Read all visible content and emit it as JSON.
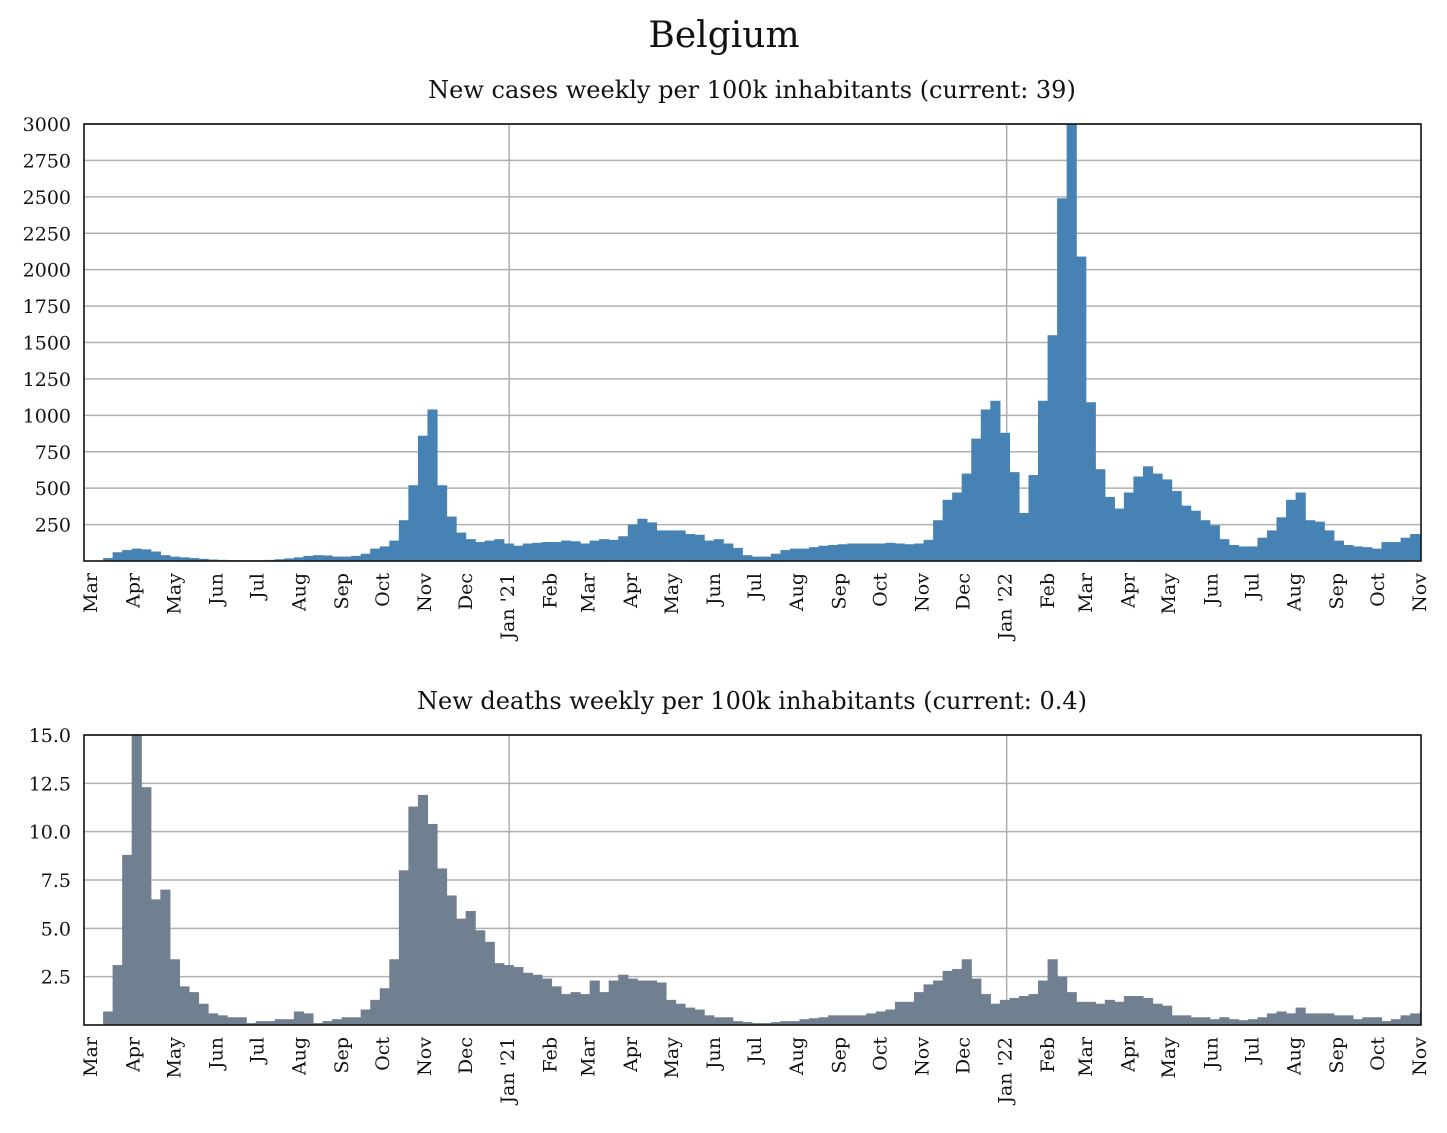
{
  "page_title": "Belgium",
  "chart_data": [
    {
      "type": "bar",
      "title": "New cases weekly per 100k inhabitants (current: 39)",
      "xlabel": "",
      "ylabel": "",
      "color": "#4682b4",
      "ylim": [
        0,
        3000
      ],
      "yticks": [
        "250",
        "500",
        "750",
        "1000",
        "1250",
        "1500",
        "1750",
        "2000",
        "2250",
        "2500",
        "2750",
        "3000"
      ],
      "ytick_values": [
        250,
        500,
        750,
        1000,
        1250,
        1500,
        1750,
        2000,
        2250,
        2500,
        2750,
        3000
      ],
      "grid": true,
      "x_start": "2020-02-24",
      "x_end": "2022-11-01",
      "bin_days": 7,
      "year_lines": [
        "2021-01-01",
        "2022-01-01"
      ],
      "xticks": [
        {
          "label": "Mar",
          "date": "2020-03-01"
        },
        {
          "label": "Apr",
          "date": "2020-04-01"
        },
        {
          "label": "May",
          "date": "2020-05-01"
        },
        {
          "label": "Jun",
          "date": "2020-06-01"
        },
        {
          "label": "Jul",
          "date": "2020-07-01"
        },
        {
          "label": "Aug",
          "date": "2020-08-01"
        },
        {
          "label": "Sep",
          "date": "2020-09-01"
        },
        {
          "label": "Oct",
          "date": "2020-10-01"
        },
        {
          "label": "Nov",
          "date": "2020-11-01"
        },
        {
          "label": "Dec",
          "date": "2020-12-01"
        },
        {
          "label": "Jan '21",
          "date": "2021-01-01"
        },
        {
          "label": "Feb",
          "date": "2021-02-01"
        },
        {
          "label": "Mar",
          "date": "2021-03-01"
        },
        {
          "label": "Apr",
          "date": "2021-04-01"
        },
        {
          "label": "May",
          "date": "2021-05-01"
        },
        {
          "label": "Jun",
          "date": "2021-06-01"
        },
        {
          "label": "Jul",
          "date": "2021-07-01"
        },
        {
          "label": "Aug",
          "date": "2021-08-01"
        },
        {
          "label": "Sep",
          "date": "2021-09-01"
        },
        {
          "label": "Oct",
          "date": "2021-10-01"
        },
        {
          "label": "Nov",
          "date": "2021-11-01"
        },
        {
          "label": "Dec",
          "date": "2021-12-01"
        },
        {
          "label": "Jan '22",
          "date": "2022-01-01"
        },
        {
          "label": "Feb",
          "date": "2022-02-01"
        },
        {
          "label": "Mar",
          "date": "2022-03-01"
        },
        {
          "label": "Apr",
          "date": "2022-04-01"
        },
        {
          "label": "May",
          "date": "2022-05-01"
        },
        {
          "label": "Jun",
          "date": "2022-06-01"
        },
        {
          "label": "Jul",
          "date": "2022-07-01"
        },
        {
          "label": "Aug",
          "date": "2022-08-01"
        },
        {
          "label": "Sep",
          "date": "2022-09-01"
        },
        {
          "label": "Oct",
          "date": "2022-10-01"
        },
        {
          "label": "Nov",
          "date": "2022-11-01"
        }
      ],
      "values": [
        0,
        0,
        20,
        60,
        75,
        85,
        80,
        65,
        40,
        30,
        25,
        20,
        15,
        10,
        8,
        6,
        5,
        5,
        5,
        8,
        12,
        18,
        25,
        35,
        40,
        38,
        30,
        30,
        35,
        50,
        85,
        100,
        140,
        280,
        520,
        860,
        1040,
        520,
        305,
        195,
        150,
        130,
        140,
        150,
        120,
        105,
        120,
        125,
        130,
        130,
        140,
        135,
        120,
        140,
        150,
        145,
        170,
        250,
        290,
        265,
        210,
        210,
        210,
        185,
        180,
        140,
        150,
        120,
        90,
        40,
        30,
        30,
        50,
        75,
        85,
        85,
        95,
        105,
        110,
        115,
        120,
        120,
        120,
        120,
        125,
        120,
        115,
        120,
        145,
        280,
        420,
        470,
        600,
        840,
        1040,
        1100,
        880,
        610,
        330,
        590,
        1100,
        1550,
        2490,
        3010,
        2090,
        1090,
        630,
        440,
        360,
        470,
        580,
        650,
        600,
        560,
        480,
        380,
        345,
        280,
        245,
        150,
        110,
        100,
        100,
        160,
        210,
        300,
        420,
        470,
        280,
        270,
        210,
        140,
        110,
        100,
        95,
        85,
        130,
        130,
        160,
        185,
        170,
        140,
        90,
        50,
        39
      ]
    },
    {
      "type": "bar",
      "title": "New deaths weekly per 100k inhabitants (current: 0.4)",
      "xlabel": "",
      "ylabel": "",
      "color": "#708090",
      "ylim": [
        0,
        15
      ],
      "yticks": [
        "2.5",
        "5.0",
        "7.5",
        "10.0",
        "12.5",
        "15.0"
      ],
      "ytick_values": [
        2.5,
        5,
        7.5,
        10,
        12.5,
        15
      ],
      "grid": true,
      "x_start": "2020-02-24",
      "x_end": "2022-11-01",
      "bin_days": 7,
      "year_lines": [
        "2021-01-01",
        "2022-01-01"
      ],
      "xticks": [
        {
          "label": "Mar",
          "date": "2020-03-01"
        },
        {
          "label": "Apr",
          "date": "2020-04-01"
        },
        {
          "label": "May",
          "date": "2020-05-01"
        },
        {
          "label": "Jun",
          "date": "2020-06-01"
        },
        {
          "label": "Jul",
          "date": "2020-07-01"
        },
        {
          "label": "Aug",
          "date": "2020-08-01"
        },
        {
          "label": "Sep",
          "date": "2020-09-01"
        },
        {
          "label": "Oct",
          "date": "2020-10-01"
        },
        {
          "label": "Nov",
          "date": "2020-11-01"
        },
        {
          "label": "Dec",
          "date": "2020-12-01"
        },
        {
          "label": "Jan '21",
          "date": "2021-01-01"
        },
        {
          "label": "Feb",
          "date": "2021-02-01"
        },
        {
          "label": "Mar",
          "date": "2021-03-01"
        },
        {
          "label": "Apr",
          "date": "2021-04-01"
        },
        {
          "label": "May",
          "date": "2021-05-01"
        },
        {
          "label": "Jun",
          "date": "2021-06-01"
        },
        {
          "label": "Jul",
          "date": "2021-07-01"
        },
        {
          "label": "Aug",
          "date": "2021-08-01"
        },
        {
          "label": "Sep",
          "date": "2021-09-01"
        },
        {
          "label": "Oct",
          "date": "2021-10-01"
        },
        {
          "label": "Nov",
          "date": "2021-11-01"
        },
        {
          "label": "Dec",
          "date": "2021-12-01"
        },
        {
          "label": "Jan '22",
          "date": "2022-01-01"
        },
        {
          "label": "Feb",
          "date": "2022-02-01"
        },
        {
          "label": "Mar",
          "date": "2022-03-01"
        },
        {
          "label": "Apr",
          "date": "2022-04-01"
        },
        {
          "label": "May",
          "date": "2022-05-01"
        },
        {
          "label": "Jun",
          "date": "2022-06-01"
        },
        {
          "label": "Jul",
          "date": "2022-07-01"
        },
        {
          "label": "Aug",
          "date": "2022-08-01"
        },
        {
          "label": "Sep",
          "date": "2022-09-01"
        },
        {
          "label": "Oct",
          "date": "2022-10-01"
        },
        {
          "label": "Nov",
          "date": "2022-11-01"
        }
      ],
      "values": [
        0,
        0,
        0.7,
        3.1,
        8.8,
        15.0,
        12.3,
        6.5,
        7.0,
        3.4,
        2.0,
        1.7,
        1.1,
        0.6,
        0.5,
        0.4,
        0.4,
        0.1,
        0.2,
        0.2,
        0.3,
        0.3,
        0.7,
        0.6,
        0.1,
        0.2,
        0.3,
        0.4,
        0.4,
        0.8,
        1.3,
        1.9,
        3.4,
        8.0,
        11.3,
        11.9,
        10.4,
        8.1,
        6.7,
        5.5,
        5.9,
        4.9,
        4.3,
        3.2,
        3.1,
        3.0,
        2.7,
        2.6,
        2.4,
        2.0,
        1.6,
        1.7,
        1.6,
        2.3,
        1.7,
        2.3,
        2.6,
        2.4,
        2.3,
        2.3,
        2.2,
        1.3,
        1.1,
        0.9,
        0.8,
        0.5,
        0.4,
        0.4,
        0.2,
        0.15,
        0.1,
        0.1,
        0.15,
        0.2,
        0.2,
        0.3,
        0.35,
        0.4,
        0.5,
        0.5,
        0.5,
        0.5,
        0.6,
        0.7,
        0.8,
        1.2,
        1.2,
        1.7,
        2.1,
        2.3,
        2.8,
        2.9,
        3.4,
        2.4,
        1.6,
        1.1,
        1.3,
        1.4,
        1.5,
        1.6,
        2.3,
        3.4,
        2.5,
        1.7,
        1.2,
        1.2,
        1.1,
        1.3,
        1.2,
        1.5,
        1.5,
        1.4,
        1.1,
        1.0,
        0.5,
        0.5,
        0.4,
        0.4,
        0.3,
        0.4,
        0.3,
        0.25,
        0.3,
        0.4,
        0.6,
        0.7,
        0.6,
        0.9,
        0.6,
        0.6,
        0.6,
        0.5,
        0.5,
        0.3,
        0.4,
        0.4,
        0.2,
        0.3,
        0.5,
        0.6,
        0.7,
        0.5,
        0.4,
        0.4
      ]
    }
  ]
}
